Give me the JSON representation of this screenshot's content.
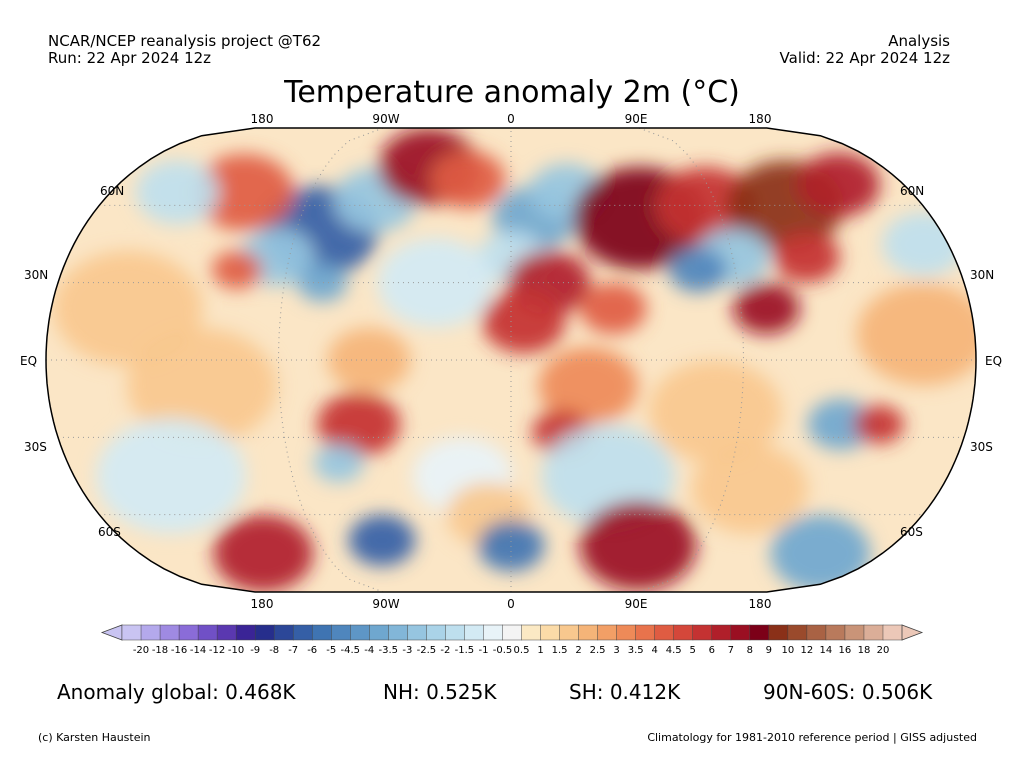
{
  "header": {
    "source": "NCAR/NCEP reanalysis project @T62",
    "run": "Run: 22 Apr 2024 12z",
    "kind": "Analysis",
    "valid": "Valid: 22 Apr 2024 12z"
  },
  "title": "Temperature anomaly 2m (°C)",
  "longitude_labels": [
    "180",
    "90W",
    "0",
    "90E",
    "180"
  ],
  "latitude_labels": [
    "60N",
    "30N",
    "EQ",
    "30S",
    "60S"
  ],
  "colorbar": {
    "ticks": [
      "-20",
      "-18",
      "-16",
      "-14",
      "-12",
      "-10",
      "-9",
      "-8",
      "-7",
      "-6",
      "-5",
      "-4.5",
      "-4",
      "-3.5",
      "-3",
      "-2.5",
      "-2",
      "-1.5",
      "-1",
      "-0.5",
      "0.5",
      "1",
      "1.5",
      "2",
      "2.5",
      "3",
      "3.5",
      "4",
      "4.5",
      "5",
      "6",
      "7",
      "8",
      "9",
      "10",
      "12",
      "14",
      "16",
      "18",
      "20"
    ],
    "colors": [
      "#c9c4f2",
      "#b4a9ec",
      "#9f8ae2",
      "#8a6cd8",
      "#7050c6",
      "#5a38b0",
      "#3a2496",
      "#262e8c",
      "#2c4798",
      "#355fa6",
      "#3f74b2",
      "#4f86bd",
      "#5e96c6",
      "#6fa7cf",
      "#82b6d8",
      "#96c5e0",
      "#aad3e8",
      "#bedfee",
      "#d3eaf4",
      "#e8f3f8",
      "#f4f4f4",
      "#fbe9c4",
      "#fbdba8",
      "#f8c88e",
      "#f5b478",
      "#f29f66",
      "#ee8a58",
      "#e8734c",
      "#df5c42",
      "#d4473a",
      "#c43232",
      "#b01f2a",
      "#9a0f22",
      "#7c0018",
      "#8a3018",
      "#9a4a2c",
      "#a96244",
      "#b97a5c",
      "#c99478",
      "#dbae98",
      "#ecc8b8"
    ]
  },
  "stats": {
    "global": "Anomaly global: 0.468K",
    "nh": "NH: 0.525K",
    "sh": "SH: 0.412K",
    "arctic": "90N-60S: 0.506K"
  },
  "footer": {
    "credit": "(c) Karsten Haustein",
    "note": "Climatology for 1981-2010 reference period | GISS adjusted"
  },
  "map": {
    "projection": "Robinson",
    "field": "2m temperature anomaly",
    "blobs": [
      {
        "lon": -80,
        "lat": 50,
        "r": 14,
        "v": -7
      },
      {
        "lon": -95,
        "lat": 40,
        "r": 9,
        "v": -3
      },
      {
        "lon": -75,
        "lat": 30,
        "r": 6,
        "v": -4
      },
      {
        "lon": -60,
        "lat": 62,
        "r": 10,
        "v": -3
      },
      {
        "lon": -120,
        "lat": 65,
        "r": 12,
        "v": 4
      },
      {
        "lon": -150,
        "lat": 65,
        "r": 10,
        "v": -2
      },
      {
        "lon": -40,
        "lat": 75,
        "r": 12,
        "v": 7
      },
      {
        "lon": -20,
        "lat": 70,
        "r": 9,
        "v": 4
      },
      {
        "lon": -110,
        "lat": 35,
        "r": 6,
        "v": 4
      },
      {
        "lon": 10,
        "lat": 55,
        "r": 10,
        "v": -4
      },
      {
        "lon": 25,
        "lat": 65,
        "r": 9,
        "v": -3
      },
      {
        "lon": 0,
        "lat": 40,
        "r": 8,
        "v": -2
      },
      {
        "lon": 15,
        "lat": 30,
        "r": 10,
        "v": 6
      },
      {
        "lon": 5,
        "lat": 15,
        "r": 10,
        "v": 5
      },
      {
        "lon": 40,
        "lat": 20,
        "r": 8,
        "v": 4
      },
      {
        "lon": 55,
        "lat": 55,
        "r": 16,
        "v": 8
      },
      {
        "lon": 85,
        "lat": 60,
        "r": 12,
        "v": 5
      },
      {
        "lon": 120,
        "lat": 60,
        "r": 14,
        "v": 9
      },
      {
        "lon": 150,
        "lat": 68,
        "r": 10,
        "v": 6
      },
      {
        "lon": 90,
        "lat": 40,
        "r": 9,
        "v": -3
      },
      {
        "lon": 75,
        "lat": 35,
        "r": 7,
        "v": -5
      },
      {
        "lon": 100,
        "lat": 20,
        "r": 8,
        "v": 7
      },
      {
        "lon": 120,
        "lat": 40,
        "r": 8,
        "v": 5
      },
      {
        "lon": 30,
        "lat": -10,
        "r": 12,
        "v": 3
      },
      {
        "lon": 20,
        "lat": -28,
        "r": 7,
        "v": 5
      },
      {
        "lon": -60,
        "lat": -25,
        "r": 10,
        "v": 5
      },
      {
        "lon": -55,
        "lat": 0,
        "r": 10,
        "v": 2
      },
      {
        "lon": -70,
        "lat": -40,
        "r": 6,
        "v": -3
      },
      {
        "lon": 130,
        "lat": -25,
        "r": 8,
        "v": -4
      },
      {
        "lon": 145,
        "lat": -25,
        "r": 6,
        "v": 5
      },
      {
        "lon": -30,
        "lat": 30,
        "r": 14,
        "v": -1.5
      },
      {
        "lon": -150,
        "lat": 20,
        "r": 18,
        "v": 1.5
      },
      {
        "lon": -120,
        "lat": -10,
        "r": 18,
        "v": 1.5
      },
      {
        "lon": 80,
        "lat": -20,
        "r": 16,
        "v": 1.5
      },
      {
        "lon": 160,
        "lat": 10,
        "r": 16,
        "v": 2
      },
      {
        "lon": -140,
        "lat": -45,
        "r": 18,
        "v": -1.5
      },
      {
        "lon": 40,
        "lat": -45,
        "r": 16,
        "v": -2
      },
      {
        "lon": -20,
        "lat": -45,
        "r": 12,
        "v": -1
      },
      {
        "lon": 100,
        "lat": -50,
        "r": 14,
        "v": 1.5
      },
      {
        "lon": -10,
        "lat": -60,
        "r": 10,
        "v": 1.5
      },
      {
        "lon": 60,
        "lat": -72,
        "r": 14,
        "v": 7
      },
      {
        "lon": -120,
        "lat": -75,
        "r": 12,
        "v": 6
      },
      {
        "lon": 0,
        "lat": -72,
        "r": 8,
        "v": -6
      },
      {
        "lon": -60,
        "lat": -70,
        "r": 8,
        "v": -7
      },
      {
        "lon": 150,
        "lat": -75,
        "r": 12,
        "v": -4
      },
      {
        "lon": 170,
        "lat": 45,
        "r": 10,
        "v": -2
      }
    ]
  }
}
